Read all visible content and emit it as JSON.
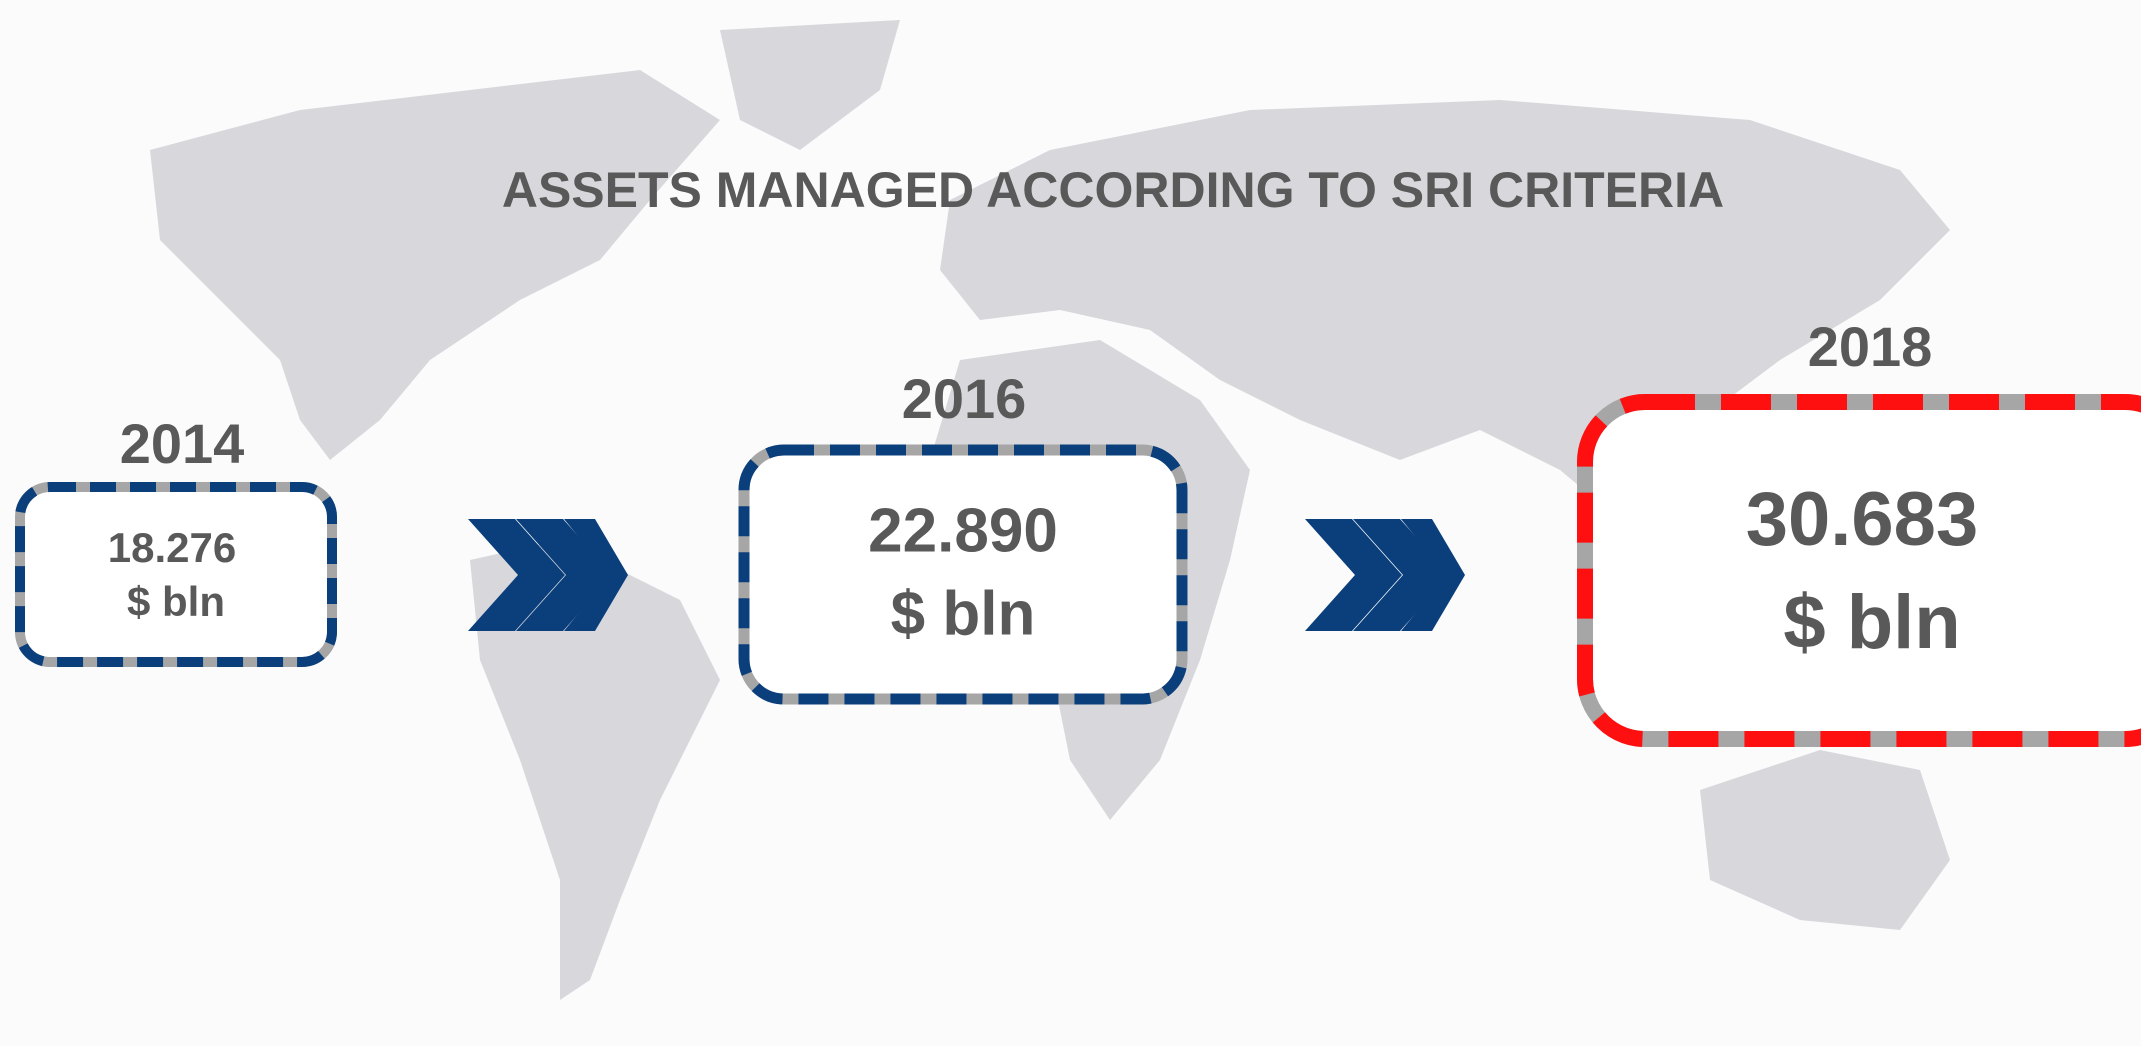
{
  "title": "ASSETS MANAGED ACCORDING TO SRI CRITERIA",
  "stages": [
    {
      "year": "2014",
      "value": "18.276",
      "unit": "$ bln"
    },
    {
      "year": "2016",
      "value": "22.890",
      "unit": "$ bln"
    },
    {
      "year": "2018",
      "value": "30.683",
      "unit": "$ bln"
    }
  ]
}
